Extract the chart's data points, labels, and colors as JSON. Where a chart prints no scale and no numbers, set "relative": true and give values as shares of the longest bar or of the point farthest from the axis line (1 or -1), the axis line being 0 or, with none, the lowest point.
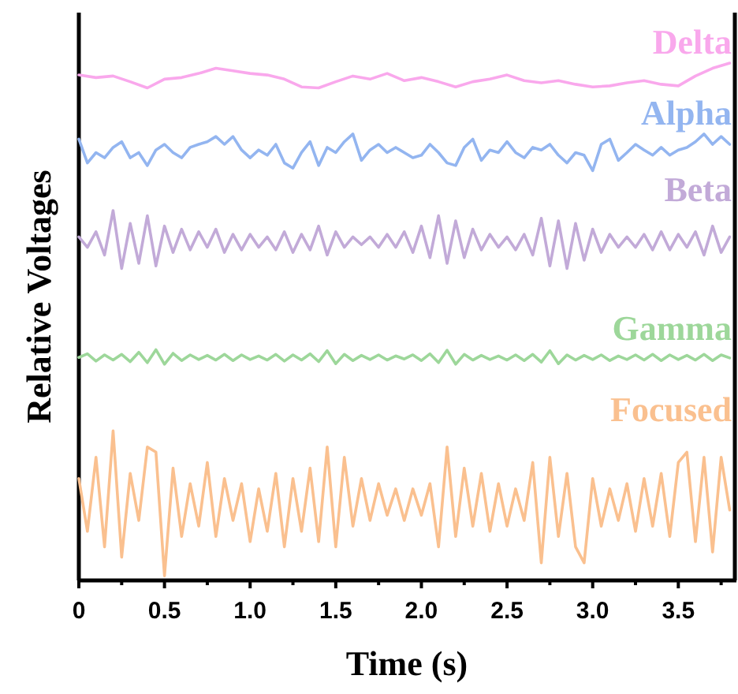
{
  "chart_data": {
    "type": "line",
    "relative": true,
    "xlabel": "Time (s)",
    "ylabel": "Relative Voltages",
    "xlim": [
      0,
      3.83
    ],
    "xticks": [
      0,
      {
        "value": 0.25,
        "label": null
      },
      0.5,
      {
        "value": 0.75,
        "label": null
      },
      {
        "value": 1,
        "label": "1.0"
      },
      {
        "value": 1.25,
        "label": null
      },
      1.5,
      {
        "value": 1.75,
        "label": null
      },
      {
        "value": 2,
        "label": "2.0"
      },
      {
        "value": 2.25,
        "label": null
      },
      2.5,
      {
        "value": 2.75,
        "label": null
      },
      {
        "value": 3,
        "label": "3.0"
      },
      {
        "value": 3.25,
        "label": null
      },
      3.5,
      {
        "value": 3.75,
        "label": null
      }
    ],
    "grid": false,
    "legend": false,
    "marker": "none",
    "line_style": "solid",
    "x": [
      0,
      0.05,
      0.1,
      0.15,
      0.2,
      0.25,
      0.3,
      0.35,
      0.4,
      0.45,
      0.5,
      0.55,
      0.6,
      0.65,
      0.7,
      0.75,
      0.8,
      0.85,
      0.9,
      0.95,
      1,
      1.05,
      1.1,
      1.15,
      1.2,
      1.25,
      1.3,
      1.35,
      1.4,
      1.45,
      1.5,
      1.55,
      1.6,
      1.65,
      1.7,
      1.75,
      1.8,
      1.85,
      1.9,
      1.95,
      2,
      2.05,
      2.1,
      2.15,
      2.2,
      2.25,
      2.3,
      2.35,
      2.4,
      2.45,
      2.5,
      2.55,
      2.6,
      2.65,
      2.7,
      2.75,
      2.8,
      2.85,
      2.9,
      2.95,
      3,
      3.05,
      3.1,
      3.15,
      3.2,
      3.25,
      3.3,
      3.35,
      3.4,
      3.45,
      3.5,
      3.55,
      3.6,
      3.65,
      3.7,
      3.75,
      3.8
    ],
    "series": [
      {
        "name": "Delta",
        "color": "#f9a8ec",
        "x": [
          0,
          0.1,
          0.2,
          0.3,
          0.4,
          0.5,
          0.6,
          0.7,
          0.8,
          0.9,
          1,
          1.1,
          1.2,
          1.3,
          1.4,
          1.5,
          1.6,
          1.7,
          1.8,
          1.9,
          2,
          2.1,
          2.2,
          2.3,
          2.4,
          2.5,
          2.6,
          2.7,
          2.8,
          2.9,
          3,
          3.1,
          3.2,
          3.3,
          3.4,
          3.5,
          3.6,
          3.7,
          3.8
        ],
        "values": [
          0.977,
          0.972,
          0.975,
          0.964,
          0.952,
          0.969,
          0.972,
          0.98,
          0.99,
          0.985,
          0.98,
          0.977,
          0.969,
          0.954,
          0.952,
          0.964,
          0.975,
          0.969,
          0.98,
          0.966,
          0.972,
          0.964,
          0.954,
          0.964,
          0.969,
          0.977,
          0.966,
          0.962,
          0.966,
          0.959,
          0.954,
          0.956,
          0.962,
          0.966,
          0.959,
          0.956,
          0.975,
          0.99,
          1
        ]
      },
      {
        "name": "Alpha",
        "color": "#93b5f0",
        "values": [
          0.853,
          0.807,
          0.827,
          0.817,
          0.837,
          0.848,
          0.817,
          0.827,
          0.802,
          0.832,
          0.843,
          0.827,
          0.817,
          0.837,
          0.843,
          0.848,
          0.858,
          0.843,
          0.858,
          0.832,
          0.817,
          0.832,
          0.822,
          0.843,
          0.807,
          0.797,
          0.827,
          0.848,
          0.802,
          0.837,
          0.827,
          0.848,
          0.863,
          0.812,
          0.832,
          0.843,
          0.827,
          0.837,
          0.827,
          0.817,
          0.822,
          0.843,
          0.827,
          0.807,
          0.802,
          0.837,
          0.853,
          0.812,
          0.832,
          0.827,
          0.848,
          0.827,
          0.817,
          0.837,
          0.832,
          0.843,
          0.822,
          0.807,
          0.827,
          0.822,
          0.792,
          0.843,
          0.853,
          0.812,
          0.827,
          0.843,
          0.832,
          0.822,
          0.837,
          0.822,
          0.832,
          0.837,
          0.848,
          0.863,
          0.843,
          0.858,
          0.843
        ]
      },
      {
        "name": "Beta",
        "color": "#c2aad8",
        "values": [
          0.664,
          0.644,
          0.674,
          0.629,
          0.715,
          0.603,
          0.69,
          0.613,
          0.705,
          0.608,
          0.685,
          0.634,
          0.679,
          0.639,
          0.674,
          0.644,
          0.679,
          0.634,
          0.669,
          0.639,
          0.669,
          0.644,
          0.664,
          0.639,
          0.674,
          0.634,
          0.669,
          0.639,
          0.685,
          0.629,
          0.674,
          0.644,
          0.664,
          0.649,
          0.664,
          0.644,
          0.669,
          0.644,
          0.674,
          0.634,
          0.685,
          0.624,
          0.705,
          0.613,
          0.695,
          0.624,
          0.679,
          0.639,
          0.669,
          0.644,
          0.664,
          0.639,
          0.669,
          0.629,
          0.7,
          0.608,
          0.695,
          0.603,
          0.69,
          0.619,
          0.679,
          0.634,
          0.669,
          0.644,
          0.664,
          0.644,
          0.669,
          0.639,
          0.674,
          0.639,
          0.669,
          0.644,
          0.674,
          0.629,
          0.685,
          0.634,
          0.664
        ]
      },
      {
        "name": "Gamma",
        "color": "#9dd79a",
        "values": [
          0.431,
          0.438,
          0.424,
          0.436,
          0.426,
          0.437,
          0.423,
          0.441,
          0.421,
          0.446,
          0.418,
          0.439,
          0.425,
          0.436,
          0.427,
          0.435,
          0.426,
          0.437,
          0.425,
          0.436,
          0.427,
          0.434,
          0.426,
          0.437,
          0.424,
          0.436,
          0.426,
          0.438,
          0.423,
          0.444,
          0.419,
          0.437,
          0.425,
          0.435,
          0.427,
          0.436,
          0.426,
          0.434,
          0.428,
          0.436,
          0.425,
          0.438,
          0.421,
          0.445,
          0.418,
          0.437,
          0.426,
          0.435,
          0.427,
          0.434,
          0.426,
          0.436,
          0.425,
          0.437,
          0.422,
          0.444,
          0.419,
          0.436,
          0.426,
          0.435,
          0.427,
          0.436,
          0.425,
          0.434,
          0.427,
          0.436,
          0.426,
          0.437,
          0.425,
          0.436,
          0.427,
          0.435,
          0.426,
          0.437,
          0.425,
          0.436,
          0.43
        ]
      },
      {
        "name": "Focused",
        "color": "#fac08f",
        "values": [
          0.197,
          0.095,
          0.238,
          0.065,
          0.289,
          0.045,
          0.207,
          0.116,
          0.258,
          0.248,
          0.009,
          0.217,
          0.085,
          0.187,
          0.105,
          0.228,
          0.085,
          0.197,
          0.116,
          0.187,
          0.075,
          0.177,
          0.095,
          0.207,
          0.065,
          0.197,
          0.095,
          0.217,
          0.075,
          0.258,
          0.065,
          0.238,
          0.105,
          0.197,
          0.116,
          0.187,
          0.126,
          0.177,
          0.116,
          0.177,
          0.126,
          0.187,
          0.065,
          0.258,
          0.085,
          0.217,
          0.105,
          0.207,
          0.095,
          0.187,
          0.105,
          0.177,
          0.116,
          0.228,
          0.034,
          0.238,
          0.085,
          0.207,
          0.065,
          0.034,
          0.197,
          0.105,
          0.177,
          0.116,
          0.187,
          0.095,
          0.197,
          0.105,
          0.207,
          0.085,
          0.228,
          0.248,
          0.075,
          0.238,
          0.055,
          0.238,
          0.136
        ]
      }
    ]
  }
}
